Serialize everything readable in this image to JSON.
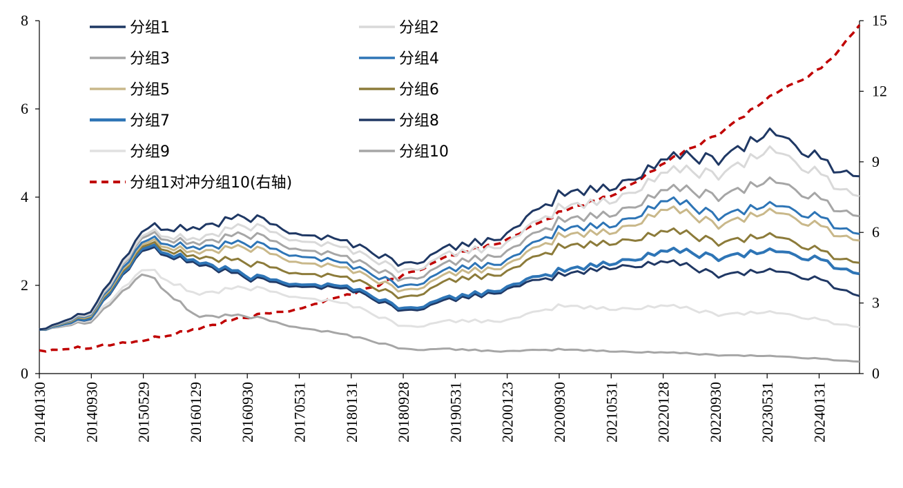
{
  "chart_data": {
    "type": "line",
    "left_axis": {
      "ylim": [
        0,
        8
      ],
      "ticks": [
        "0",
        "2",
        "4",
        "6",
        "8"
      ]
    },
    "right_axis": {
      "ylim": [
        0,
        15
      ],
      "ticks": [
        "0",
        "3",
        "6",
        "9",
        "12",
        "15"
      ]
    },
    "x_tick_labels": [
      "20140130",
      "20140930",
      "20150529",
      "20160129",
      "20160930",
      "20170531",
      "20180131",
      "20180928",
      "20190531",
      "20200123",
      "20200930",
      "20210531",
      "20220128",
      "20220930",
      "20230531",
      "20240131"
    ],
    "grid": false,
    "legend_placement": "top-left",
    "keyframes_x": [
      0,
      1,
      2,
      3,
      4,
      5,
      6,
      7,
      8,
      9,
      10,
      11,
      12,
      13,
      14,
      15,
      15.7
    ],
    "series": [
      {
        "name": "分组1",
        "axis": "left",
        "color": "#1f3864",
        "width": 3,
        "dash": "",
        "values": [
          1.0,
          1.45,
          3.3,
          3.3,
          3.55,
          3.2,
          2.95,
          2.45,
          2.9,
          3.15,
          4.1,
          4.2,
          4.9,
          4.9,
          5.5,
          4.8,
          4.45
        ]
      },
      {
        "name": "分组2",
        "axis": "left",
        "color": "#d9d9d9",
        "width": 3,
        "dash": "",
        "values": [
          1.0,
          1.42,
          3.2,
          3.05,
          3.35,
          3.05,
          2.8,
          2.3,
          2.75,
          2.95,
          3.8,
          3.9,
          4.6,
          4.55,
          5.1,
          4.45,
          4.0
        ]
      },
      {
        "name": "分组3",
        "axis": "left",
        "color": "#a6a6a6",
        "width": 3,
        "dash": "",
        "values": [
          1.0,
          1.4,
          3.15,
          2.95,
          3.15,
          2.85,
          2.6,
          2.1,
          2.55,
          2.75,
          3.5,
          3.6,
          4.2,
          4.05,
          4.4,
          3.9,
          3.55
        ]
      },
      {
        "name": "分组4",
        "axis": "left",
        "color": "#2e75b6",
        "width": 3,
        "dash": "",
        "values": [
          1.0,
          1.38,
          3.05,
          2.85,
          2.95,
          2.7,
          2.45,
          1.95,
          2.4,
          2.55,
          3.3,
          3.35,
          3.95,
          3.6,
          3.85,
          3.5,
          3.15
        ]
      },
      {
        "name": "分组5",
        "axis": "left",
        "color": "#c9b88a",
        "width": 3,
        "dash": "",
        "values": [
          1.0,
          1.36,
          3.0,
          2.75,
          2.85,
          2.55,
          2.35,
          1.85,
          2.3,
          2.45,
          3.15,
          3.2,
          3.75,
          3.4,
          3.7,
          3.3,
          3.0
        ]
      },
      {
        "name": "分组6",
        "axis": "left",
        "color": "#8c7b3a",
        "width": 3,
        "dash": "",
        "values": [
          1.0,
          1.34,
          2.95,
          2.65,
          2.5,
          2.3,
          2.15,
          1.7,
          2.15,
          2.3,
          2.9,
          2.95,
          3.25,
          3.0,
          3.15,
          2.75,
          2.5
        ]
      },
      {
        "name": "分组7",
        "axis": "left",
        "color": "#2e75b6",
        "width": 4,
        "dash": "",
        "values": [
          1.0,
          1.3,
          2.9,
          2.55,
          2.2,
          2.05,
          1.95,
          1.45,
          1.75,
          1.95,
          2.35,
          2.5,
          2.8,
          2.65,
          2.8,
          2.55,
          2.25
        ]
      },
      {
        "name": "分组8",
        "axis": "left",
        "color": "#203864",
        "width": 3,
        "dash": "",
        "values": [
          1.0,
          1.28,
          2.85,
          2.5,
          2.15,
          2.0,
          1.9,
          1.4,
          1.7,
          1.9,
          2.25,
          2.4,
          2.55,
          2.25,
          2.35,
          2.1,
          1.75
        ]
      },
      {
        "name": "分组9",
        "axis": "left",
        "color": "#e1e1e1",
        "width": 3,
        "dash": "",
        "values": [
          1.0,
          1.25,
          2.4,
          1.8,
          1.95,
          1.75,
          1.55,
          1.05,
          1.2,
          1.2,
          1.55,
          1.45,
          1.55,
          1.35,
          1.4,
          1.2,
          1.05
        ]
      },
      {
        "name": "分组10",
        "axis": "left",
        "color": "#a6a6a6",
        "width": 3,
        "dash": "",
        "values": [
          1.0,
          1.2,
          2.3,
          1.3,
          1.3,
          1.05,
          0.85,
          0.55,
          0.55,
          0.5,
          0.55,
          0.5,
          0.48,
          0.42,
          0.4,
          0.33,
          0.27
        ]
      },
      {
        "name": "分组1对冲分组10(右轴)",
        "axis": "right",
        "color": "#c00000",
        "width": 3.5,
        "dash": "10,7",
        "values": [
          1.0,
          1.15,
          1.4,
          1.9,
          2.4,
          2.8,
          3.4,
          4.2,
          5.1,
          5.7,
          6.9,
          7.6,
          9.0,
          10.2,
          11.8,
          13.0,
          14.8
        ]
      }
    ]
  }
}
